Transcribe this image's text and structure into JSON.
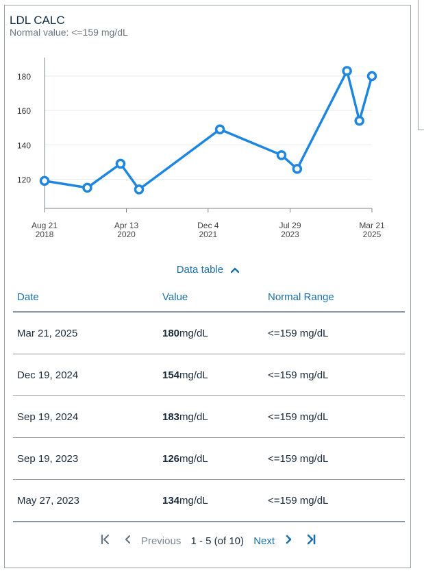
{
  "card": {
    "title": "LDL CALC",
    "subtitle": "Normal value: <=159 mg/dL"
  },
  "chart_data": {
    "type": "line",
    "color": "#1f86e0",
    "ylim": [
      103,
      190
    ],
    "yticks": [
      120,
      140,
      160,
      180
    ],
    "xlim": [
      "2018-08-21",
      "2025-03-21"
    ],
    "xticks": [
      {
        "date": "2018-08-21",
        "line1": "Aug 21",
        "line2": "2018"
      },
      {
        "date": "2020-04-13",
        "line1": "Apr 13",
        "line2": "2020"
      },
      {
        "date": "2021-12-04",
        "line1": "Dec 4",
        "line2": "2021"
      },
      {
        "date": "2023-07-29",
        "line1": "Jul 29",
        "line2": "2023"
      },
      {
        "date": "2025-03-21",
        "line1": "Mar 21",
        "line2": "2025"
      }
    ],
    "points": [
      {
        "x": "2018-08-21",
        "y": 119
      },
      {
        "x": "2019-07-01",
        "y": 115
      },
      {
        "x": "2020-03-01",
        "y": 129
      },
      {
        "x": "2020-07-15",
        "y": 114
      },
      {
        "x": "2022-03-01",
        "y": 149
      },
      {
        "x": "2023-05-27",
        "y": 134
      },
      {
        "x": "2023-09-19",
        "y": 126
      },
      {
        "x": "2024-09-19",
        "y": 183
      },
      {
        "x": "2024-12-19",
        "y": 154
      },
      {
        "x": "2025-03-21",
        "y": 180
      }
    ],
    "grid": true,
    "xlabel": "",
    "ylabel": ""
  },
  "data_table": {
    "toggle_label": "Data table",
    "headers": [
      "Date",
      "Value",
      "Normal Range"
    ],
    "unit": "mg/dL",
    "rows": [
      {
        "date": "Mar 21, 2025",
        "value": "180",
        "range": "<=159 mg/dL"
      },
      {
        "date": "Dec 19, 2024",
        "value": "154",
        "range": "<=159 mg/dL"
      },
      {
        "date": "Sep 19, 2024",
        "value": "183",
        "range": "<=159 mg/dL"
      },
      {
        "date": "Sep 19, 2023",
        "value": "126",
        "range": "<=159 mg/dL"
      },
      {
        "date": "May 27, 2023",
        "value": "134",
        "range": "<=159 mg/dL"
      }
    ]
  },
  "pager": {
    "first_icon": "first-page-icon",
    "prev_icon": "chevron-left-icon",
    "prev_label": "Previous",
    "info": "1 - 5 (of 10)",
    "next_label": "Next",
    "next_icon": "chevron-right-icon",
    "last_icon": "last-page-icon"
  }
}
